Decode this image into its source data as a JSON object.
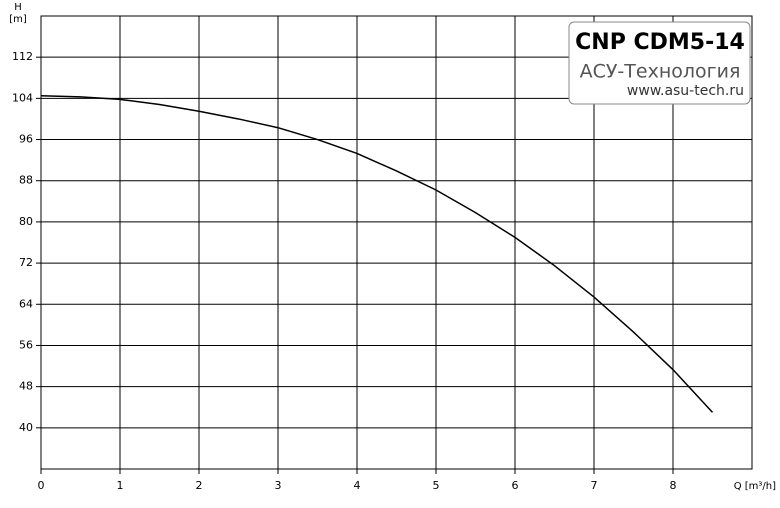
{
  "chart_data": {
    "type": "line",
    "title": "CNP CDM5-14",
    "subtitle": "АСУ-Технология",
    "annotation": "www.asu-tech.ru",
    "y_axis_label": "H",
    "y_axis_unit": "[m]",
    "x_axis_label": "Q [m³/h]",
    "x": [
      0,
      0.5,
      1,
      1.5,
      2,
      2.5,
      3,
      3.5,
      4,
      4.5,
      5,
      5.5,
      6,
      6.5,
      7,
      7.5,
      8,
      8.5
    ],
    "series": [
      {
        "name": "H",
        "color": "#000000",
        "values": [
          104.5,
          104.3,
          103.8,
          102.8,
          101.5,
          100,
          98.3,
          96,
          93.3,
          89.9,
          86.2,
          81.8,
          77,
          71.5,
          65.4,
          58.6,
          51.3,
          43
        ]
      }
    ],
    "xlim": [
      0,
      9
    ],
    "ylim": [
      32,
      120
    ],
    "xticks": [
      0,
      1,
      2,
      3,
      4,
      5,
      6,
      7,
      8
    ],
    "yticks": [
      40,
      48,
      56,
      64,
      72,
      80,
      88,
      96,
      104,
      112
    ],
    "grid": true
  }
}
